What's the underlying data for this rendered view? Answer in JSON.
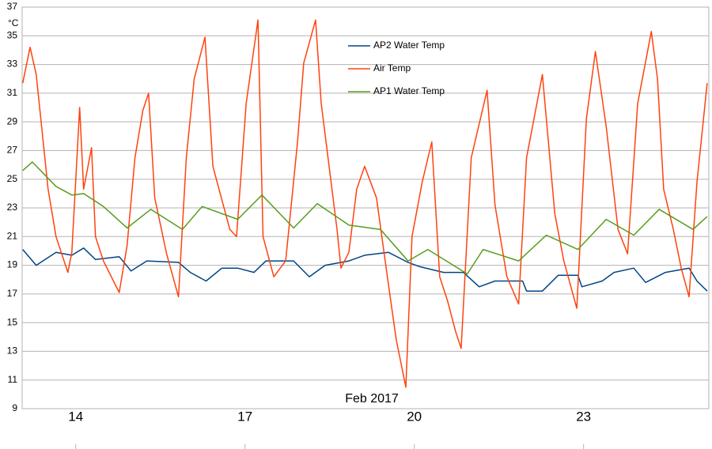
{
  "chart_data": {
    "type": "line",
    "x_label": "Feb 2017",
    "y_label": "°C",
    "xlim": [
      13.05,
      25.22
    ],
    "xticks": [
      14,
      17,
      20,
      23
    ],
    "ylim": [
      9,
      37
    ],
    "yticks": [
      9,
      11,
      13,
      15,
      17,
      19,
      21,
      23,
      25,
      27,
      29,
      31,
      33,
      35,
      37
    ],
    "grid": true,
    "legend": "top-center",
    "series": [
      {
        "name": "AP2 Water Temp",
        "color": "#004586",
        "x": [
          13.06,
          13.3,
          13.65,
          13.93,
          14.14,
          14.35,
          14.77,
          14.98,
          15.26,
          15.82,
          16.03,
          16.31,
          16.59,
          16.87,
          17.16,
          17.37,
          17.86,
          18.14,
          18.42,
          18.84,
          19.12,
          19.54,
          19.89,
          20.1,
          20.52,
          20.87,
          21.15,
          21.43,
          21.92,
          21.99,
          22.27,
          22.55,
          22.9,
          22.97,
          23.33,
          23.54,
          23.89,
          24.1,
          24.45,
          24.87,
          25.01,
          25.19
        ],
        "values": [
          20.1,
          19.0,
          19.9,
          19.7,
          20.2,
          19.4,
          19.6,
          18.6,
          19.3,
          19.2,
          18.5,
          17.9,
          18.8,
          18.8,
          18.5,
          19.3,
          19.3,
          18.2,
          19.0,
          19.3,
          19.7,
          19.9,
          19.2,
          18.9,
          18.5,
          18.5,
          17.5,
          17.9,
          17.9,
          17.2,
          17.2,
          18.3,
          18.3,
          17.5,
          17.9,
          18.5,
          18.8,
          17.8,
          18.5,
          18.8,
          17.9,
          17.2
        ]
      },
      {
        "name": "Air Temp",
        "color": "#ff420e",
        "x": [
          13.06,
          13.19,
          13.3,
          13.51,
          13.65,
          13.86,
          13.93,
          14.07,
          14.14,
          14.28,
          14.35,
          14.49,
          14.77,
          14.91,
          15.05,
          15.19,
          15.29,
          15.4,
          15.61,
          15.82,
          15.96,
          16.1,
          16.29,
          16.43,
          16.73,
          16.85,
          17.02,
          17.23,
          17.32,
          17.51,
          17.72,
          17.93,
          18.04,
          18.25,
          18.35,
          18.63,
          18.7,
          18.84,
          18.98,
          19.12,
          19.33,
          19.54,
          19.68,
          19.85,
          19.96,
          20.14,
          20.31,
          20.45,
          20.59,
          20.73,
          20.83,
          21.01,
          21.29,
          21.43,
          21.64,
          21.85,
          21.99,
          22.27,
          22.49,
          22.65,
          22.88,
          23.05,
          23.21,
          23.4,
          23.61,
          23.78,
          23.96,
          24.2,
          24.31,
          24.42,
          24.59,
          24.73,
          24.87,
          25.01,
          25.19
        ],
        "values": [
          31.7,
          34.2,
          32.3,
          24.3,
          21.0,
          18.5,
          19.9,
          30.0,
          24.3,
          27.2,
          21.0,
          19.3,
          17.1,
          20.4,
          26.5,
          29.8,
          31.0,
          23.7,
          19.8,
          16.8,
          26.5,
          32.0,
          34.9,
          25.9,
          21.5,
          21.0,
          30.3,
          36.1,
          21.0,
          18.2,
          19.3,
          27.6,
          33.1,
          36.1,
          30.3,
          21.5,
          18.8,
          19.9,
          24.3,
          25.9,
          23.7,
          17.7,
          13.8,
          10.5,
          21.0,
          24.8,
          27.6,
          18.2,
          16.5,
          14.4,
          13.2,
          26.5,
          31.2,
          23.2,
          18.2,
          16.3,
          26.5,
          32.3,
          22.6,
          19.3,
          16.0,
          29.2,
          33.9,
          28.7,
          21.5,
          19.8,
          30.3,
          35.3,
          32.0,
          24.3,
          21.5,
          18.8,
          16.8,
          24.8,
          31.7
        ]
      },
      {
        "name": "AP1 Water Temp",
        "color": "#579d1c",
        "x": [
          13.06,
          13.23,
          13.65,
          13.93,
          14.14,
          14.49,
          14.91,
          15.33,
          15.89,
          16.24,
          16.87,
          17.3,
          17.86,
          18.28,
          18.84,
          19.4,
          19.89,
          20.24,
          20.94,
          21.22,
          21.85,
          22.34,
          22.9,
          23.4,
          23.89,
          24.34,
          24.94,
          25.19
        ],
        "values": [
          25.6,
          26.2,
          24.5,
          23.9,
          24.0,
          23.1,
          21.6,
          22.9,
          21.5,
          23.1,
          22.2,
          23.9,
          21.6,
          23.3,
          21.8,
          21.5,
          19.3,
          20.1,
          18.4,
          20.1,
          19.3,
          21.1,
          20.1,
          22.2,
          21.1,
          22.9,
          21.5,
          22.4
        ]
      }
    ]
  }
}
